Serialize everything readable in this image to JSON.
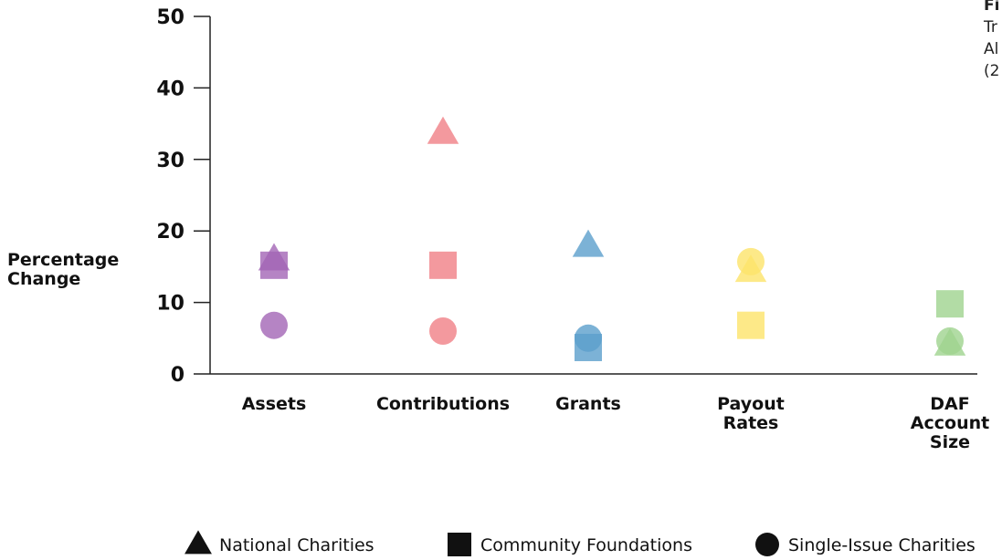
{
  "chart_data": {
    "type": "scatter",
    "y_label": "Percentage Change",
    "categories": [
      "Assets",
      "Contributions",
      "Grants",
      "Payout Rates",
      "DAF Account Size"
    ],
    "category_colors": [
      "#a365b5",
      "#f07f86",
      "#5b9fcc",
      "#fde36a",
      "#9fd38e"
    ],
    "series": [
      {
        "name": "National Charities",
        "marker": "triangle",
        "color": "#111",
        "values": [
          16,
          33.7,
          17.9,
          14.4,
          4.1
        ]
      },
      {
        "name": "Community Foundations",
        "marker": "square",
        "color": "#111",
        "values": [
          15.2,
          15.2,
          3.7,
          6.8,
          9.8
        ]
      },
      {
        "name": "Single-Issue Charities",
        "marker": "circle",
        "color": "#111",
        "values": [
          6.8,
          6.0,
          5.0,
          15.7,
          4.6
        ]
      }
    ],
    "ylim": [
      0,
      50
    ],
    "yticks": [
      0,
      10,
      20,
      30,
      40,
      50
    ],
    "annotations": [
      "Fi",
      "Tr",
      "Al",
      "(2"
    ]
  }
}
